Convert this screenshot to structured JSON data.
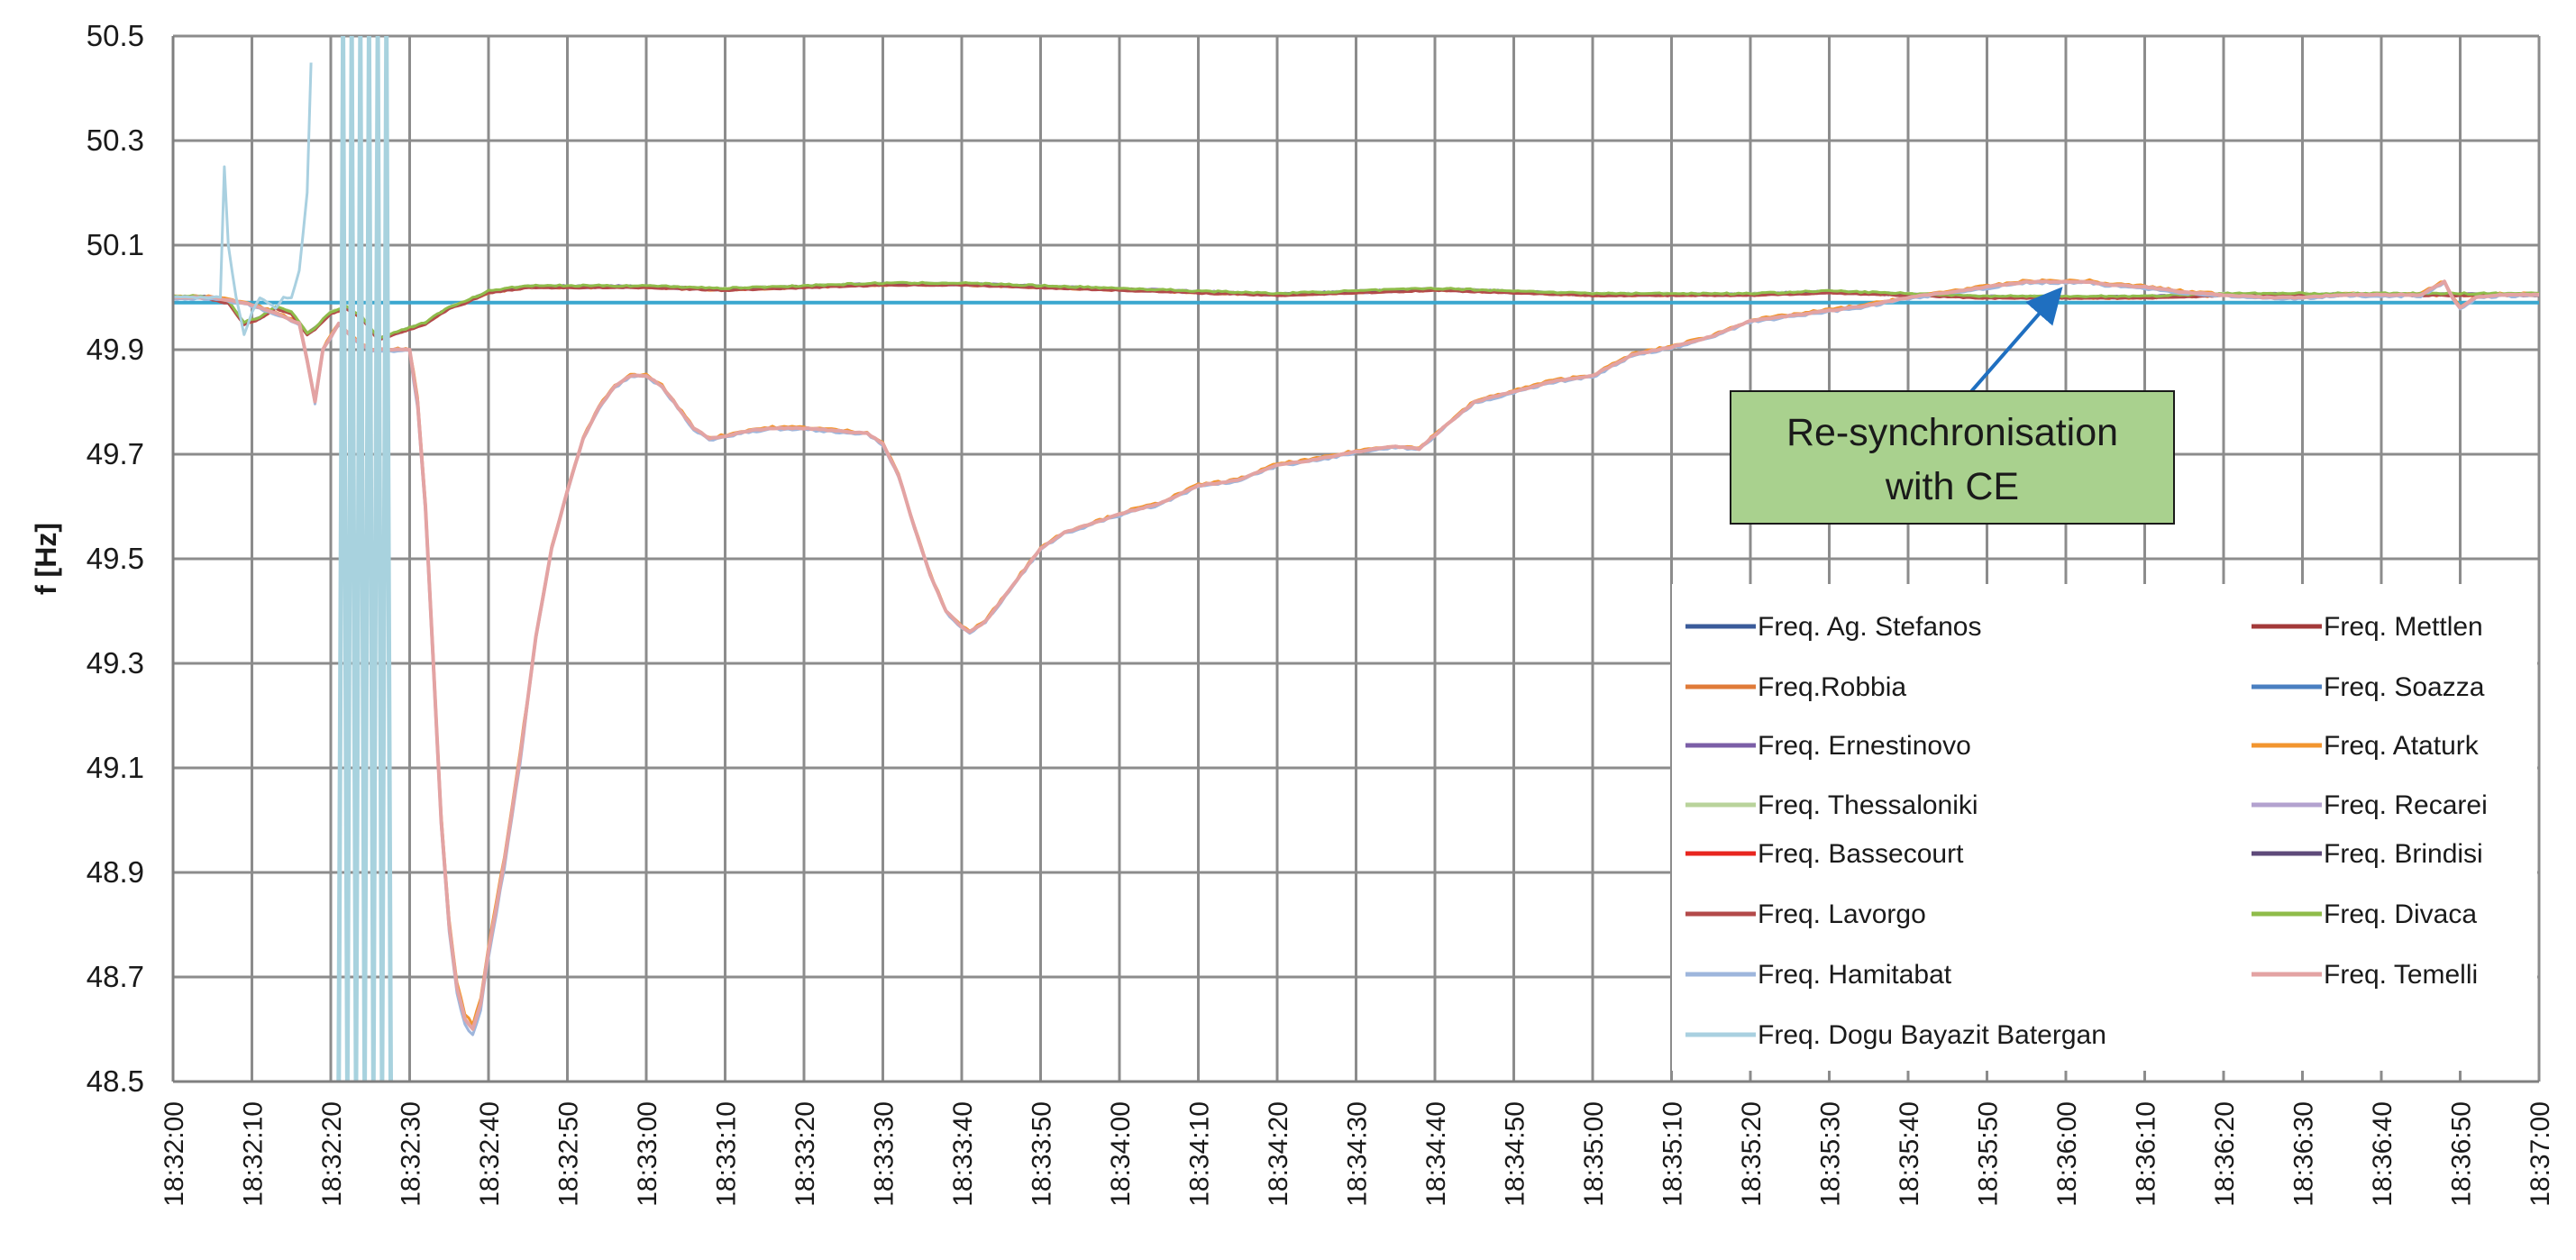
{
  "chart_data": {
    "type": "line",
    "title": "",
    "xlabel": "",
    "ylabel": "f [Hz]",
    "ylim": [
      48.5,
      50.5
    ],
    "xlim": [
      "18:32:00",
      "18:37:00"
    ],
    "grid": true,
    "legend_position": "bottom-right",
    "y_ticks": [
      "50.5",
      "50.3",
      "50.1",
      "49.9",
      "49.7",
      "49.5",
      "49.3",
      "49.1",
      "48.9",
      "48.7",
      "48.5"
    ],
    "x_ticks": [
      "18:32:00",
      "18:32:10",
      "18:32:20",
      "18:32:30",
      "18:32:40",
      "18:32:50",
      "18:33:00",
      "18:33:10",
      "18:33:20",
      "18:33:30",
      "18:33:40",
      "18:33:50",
      "18:34:00",
      "18:34:10",
      "18:34:20",
      "18:34:30",
      "18:34:40",
      "18:34:50",
      "18:35:00",
      "18:35:10",
      "18:35:20",
      "18:35:30",
      "18:35:40",
      "18:35:50",
      "18:36:00",
      "18:36:10",
      "18:36:20",
      "18:36:30",
      "18:36:40",
      "18:36:50",
      "18:37:00"
    ],
    "reference_line": {
      "y": 49.99,
      "color": "#3aa7cf"
    },
    "annotation": {
      "lines": [
        "Re-synchronisation",
        "with CE"
      ],
      "fill": "#a9d18e",
      "arrow_color": "#1f6fc0",
      "arrow_from": {
        "x": "18:35:37",
        "y": 49.63
      },
      "arrow_to": {
        "x": "18:35:59",
        "y": 50.01
      }
    },
    "series": [
      {
        "name": "Freq. Ag. Stefanos",
        "color": "#3b5b9a",
        "group": "ce",
        "offset": 0.0,
        "jitter": 0.003
      },
      {
        "name": "Freq. Mettlen",
        "color": "#a33a3a",
        "group": "ce",
        "offset": 0.002,
        "jitter": 0.003
      },
      {
        "name": "Freq.Robbia",
        "color": "#e07b39",
        "group": "ce",
        "offset": -0.002,
        "jitter": 0.003
      },
      {
        "name": "Freq. Soazza",
        "color": "#4a7fc1",
        "group": "ce",
        "offset": 0.001,
        "jitter": 0.003
      },
      {
        "name": "Freq. Ernestinovo",
        "color": "#7b5ea7",
        "group": "ce",
        "offset": 0.003,
        "jitter": 0.003
      },
      {
        "name": "Freq. Ataturk",
        "color": "#f2952f",
        "group": "tr",
        "offset": 0.01,
        "jitter": 0.004
      },
      {
        "name": "Freq. Thessaloniki",
        "color": "#b9d39b",
        "group": "ce",
        "offset": 0.004,
        "jitter": 0.003
      },
      {
        "name": "Freq. Recarei",
        "color": "#b3a2cf",
        "group": "ce",
        "offset": -0.001,
        "jitter": 0.003
      },
      {
        "name": "Freq. Bassecourt",
        "color": "#e8261f",
        "group": "ce",
        "offset": 0.0,
        "jitter": 0.002
      },
      {
        "name": "Freq. Brindisi",
        "color": "#5e4a7a",
        "group": "ce",
        "offset": 0.002,
        "jitter": 0.002
      },
      {
        "name": "Freq. Lavorgo",
        "color": "#b34a4a",
        "group": "ce",
        "offset": -0.003,
        "jitter": 0.002
      },
      {
        "name": "Freq. Divaca",
        "color": "#8fbc4a",
        "group": "ce",
        "offset": 0.005,
        "jitter": 0.003
      },
      {
        "name": "Freq. Hamitabat",
        "color": "#9eb6dc",
        "group": "tr",
        "offset": -0.012,
        "jitter": 0.004
      },
      {
        "name": "Freq. Temelli",
        "color": "#e3a3a3",
        "group": "tr",
        "offset": 0.0,
        "jitter": 0.002
      },
      {
        "name": "Freq. Dogu Bayazit Batergan",
        "color": "#a9d0e0",
        "group": "dogu",
        "offset": 0.0,
        "jitter": 0.003
      }
    ],
    "profiles": {
      "ce": [
        [
          0,
          50.0
        ],
        [
          4,
          50.0
        ],
        [
          7,
          49.99
        ],
        [
          9,
          49.95
        ],
        [
          11,
          49.96
        ],
        [
          13,
          49.98
        ],
        [
          15,
          49.97
        ],
        [
          17,
          49.93
        ],
        [
          18,
          49.94
        ],
        [
          20,
          49.97
        ],
        [
          22,
          49.98
        ],
        [
          24,
          49.96
        ],
        [
          26,
          49.92
        ],
        [
          28,
          49.93
        ],
        [
          30,
          49.94
        ],
        [
          32,
          49.95
        ],
        [
          33,
          49.96
        ],
        [
          35,
          49.98
        ],
        [
          37,
          49.99
        ],
        [
          40,
          50.01
        ],
        [
          45,
          50.02
        ],
        [
          50,
          50.02
        ],
        [
          60,
          50.02
        ],
        [
          70,
          50.015
        ],
        [
          80,
          50.02
        ],
        [
          90,
          50.025
        ],
        [
          100,
          50.025
        ],
        [
          110,
          50.02
        ],
        [
          120,
          50.015
        ],
        [
          130,
          50.01
        ],
        [
          140,
          50.005
        ],
        [
          150,
          50.01
        ],
        [
          160,
          50.015
        ],
        [
          170,
          50.01
        ],
        [
          180,
          50.005
        ],
        [
          190,
          50.005
        ],
        [
          200,
          50.005
        ],
        [
          210,
          50.01
        ],
        [
          220,
          50.005
        ],
        [
          230,
          50.0
        ],
        [
          240,
          50.0
        ],
        [
          250,
          50.0
        ],
        [
          260,
          50.005
        ],
        [
          270,
          50.005
        ],
        [
          280,
          50.005
        ],
        [
          290,
          50.005
        ],
        [
          300,
          50.005
        ]
      ],
      "tr": [
        [
          0,
          50.0
        ],
        [
          5,
          50.0
        ],
        [
          9,
          49.99
        ],
        [
          13,
          49.97
        ],
        [
          16,
          49.95
        ],
        [
          17,
          49.88
        ],
        [
          18,
          49.8
        ],
        [
          19,
          49.9
        ],
        [
          21,
          49.95
        ],
        [
          23,
          49.92
        ],
        [
          25,
          49.9
        ],
        [
          27,
          49.9
        ],
        [
          29,
          49.9
        ],
        [
          30,
          49.9
        ],
        [
          31,
          49.8
        ],
        [
          32,
          49.6
        ],
        [
          33,
          49.3
        ],
        [
          34,
          49.0
        ],
        [
          35,
          48.8
        ],
        [
          36,
          48.68
        ],
        [
          37,
          48.62
        ],
        [
          38,
          48.6
        ],
        [
          39,
          48.65
        ],
        [
          40,
          48.75
        ],
        [
          42,
          48.92
        ],
        [
          44,
          49.12
        ],
        [
          46,
          49.35
        ],
        [
          48,
          49.52
        ],
        [
          50,
          49.63
        ],
        [
          52,
          49.73
        ],
        [
          54,
          49.79
        ],
        [
          56,
          49.83
        ],
        [
          58,
          49.85
        ],
        [
          60,
          49.85
        ],
        [
          62,
          49.83
        ],
        [
          64,
          49.79
        ],
        [
          66,
          49.75
        ],
        [
          68,
          49.73
        ],
        [
          70,
          49.735
        ],
        [
          73,
          49.745
        ],
        [
          76,
          49.75
        ],
        [
          80,
          49.75
        ],
        [
          84,
          49.745
        ],
        [
          88,
          49.74
        ],
        [
          90,
          49.72
        ],
        [
          92,
          49.66
        ],
        [
          94,
          49.56
        ],
        [
          96,
          49.47
        ],
        [
          98,
          49.4
        ],
        [
          100,
          49.37
        ],
        [
          101,
          49.36
        ],
        [
          103,
          49.38
        ],
        [
          105,
          49.42
        ],
        [
          107,
          49.46
        ],
        [
          110,
          49.52
        ],
        [
          113,
          49.55
        ],
        [
          117,
          49.57
        ],
        [
          121,
          49.59
        ],
        [
          125,
          49.605
        ],
        [
          130,
          49.64
        ],
        [
          135,
          49.65
        ],
        [
          140,
          49.68
        ],
        [
          145,
          49.69
        ],
        [
          150,
          49.705
        ],
        [
          155,
          49.715
        ],
        [
          158,
          49.71
        ],
        [
          161,
          49.75
        ],
        [
          165,
          49.8
        ],
        [
          170,
          49.82
        ],
        [
          175,
          49.84
        ],
        [
          180,
          49.85
        ],
        [
          185,
          49.89
        ],
        [
          190,
          49.905
        ],
        [
          195,
          49.925
        ],
        [
          200,
          49.955
        ],
        [
          205,
          49.965
        ],
        [
          210,
          49.975
        ],
        [
          215,
          49.985
        ],
        [
          220,
          50.0
        ],
        [
          225,
          50.01
        ],
        [
          230,
          50.02
        ],
        [
          235,
          50.03
        ],
        [
          240,
          50.03
        ],
        [
          243,
          50.03
        ],
        [
          245,
          50.025
        ],
        [
          250,
          50.02
        ],
        [
          255,
          50.01
        ],
        [
          260,
          50.005
        ],
        [
          265,
          50.0
        ],
        [
          270,
          50.0
        ],
        [
          275,
          50.005
        ],
        [
          280,
          50.005
        ],
        [
          285,
          50.005
        ],
        [
          288,
          50.03
        ],
        [
          289,
          50.0
        ],
        [
          290,
          49.98
        ],
        [
          292,
          50.0
        ],
        [
          295,
          50.005
        ],
        [
          300,
          50.005
        ]
      ],
      "dogu": [
        [
          0,
          50.0
        ],
        [
          6,
          50.0
        ],
        [
          6.5,
          50.25
        ],
        [
          7,
          50.1
        ],
        [
          8,
          50.0
        ],
        [
          9,
          49.93
        ],
        [
          10,
          49.97
        ],
        [
          11,
          50.0
        ],
        [
          13,
          49.98
        ],
        [
          14,
          50.0
        ],
        [
          15,
          50.0
        ],
        [
          16,
          50.05
        ],
        [
          17,
          50.2
        ],
        [
          17.6,
          50.5
        ]
      ]
    },
    "spikes": {
      "x_start": 21,
      "x_end": 27.8,
      "step": 0.55,
      "low": 48.5,
      "high": 50.5,
      "color": "#a8d2de"
    }
  }
}
